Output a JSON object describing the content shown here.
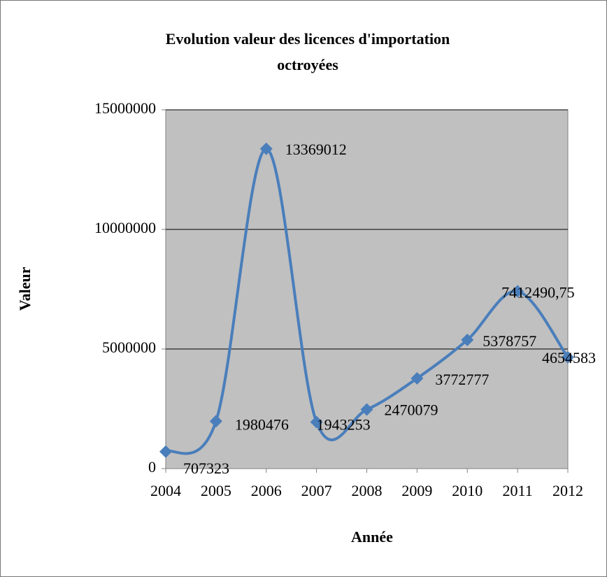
{
  "chart_data": {
    "type": "line",
    "title": "Evolution valeur des licences d'importation octroyées",
    "x_label": "Année",
    "y_label": "Valeur",
    "categories": [
      "2004",
      "2005",
      "2006",
      "2007",
      "2008",
      "2009",
      "2010",
      "2011",
      "2012"
    ],
    "series": [
      {
        "name": "Valeur",
        "color": "#4a7ebb",
        "values": [
          707323,
          1980476,
          13369012,
          1943253,
          2470079,
          3772777,
          5378757,
          7412490.75,
          4654583
        ],
        "value_labels": [
          "707323",
          "1980476",
          "13369012",
          "1943253",
          "2470079",
          "3772777",
          "5378757",
          "7412490,75",
          "4654583"
        ]
      }
    ],
    "ylim": [
      0,
      15000000
    ],
    "yticks": [
      0,
      5000000,
      10000000,
      15000000
    ],
    "grid": true,
    "smooth": true
  }
}
